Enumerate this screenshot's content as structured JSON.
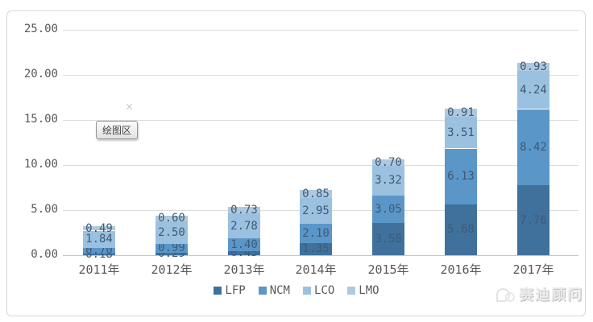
{
  "chart_data": {
    "type": "bar",
    "stacked": true,
    "title": "",
    "xlabel": "",
    "ylabel": "",
    "categories": [
      "2011年",
      "2012年",
      "2013年",
      "2014年",
      "2015年",
      "2016年",
      "2017年"
    ],
    "series": [
      {
        "name": "LFP",
        "color": "#40719c",
        "values": [
          0.18,
          0.29,
          0.45,
          1.35,
          3.58,
          5.68,
          7.76
        ]
      },
      {
        "name": "NCM",
        "color": "#5b96c8",
        "values": [
          0.7,
          0.99,
          1.4,
          2.1,
          3.05,
          6.13,
          8.42
        ]
      },
      {
        "name": "LCO",
        "color": "#9ac1e0",
        "values": [
          1.84,
          2.5,
          2.78,
          2.95,
          3.32,
          3.51,
          4.24
        ]
      },
      {
        "name": "LMO",
        "color": "#aec9de",
        "values": [
          0.49,
          0.6,
          0.73,
          0.85,
          0.7,
          0.91,
          0.93
        ]
      }
    ],
    "ylim": [
      0,
      25
    ],
    "ytick_step": 5,
    "ytick_labels": [
      "0.00",
      "5.00",
      "10.00",
      "15.00",
      "20.00",
      "25.00"
    ],
    "grid": true,
    "data_labels": true,
    "legend_position": "bottom"
  },
  "tooltip": {
    "label": "绘图区"
  },
  "watermark": {
    "text": "赛迪顾问"
  },
  "colors": {
    "gridline": "#dcdcdc",
    "axis_text": "#595959",
    "data_label_text": "#3d5a77"
  }
}
